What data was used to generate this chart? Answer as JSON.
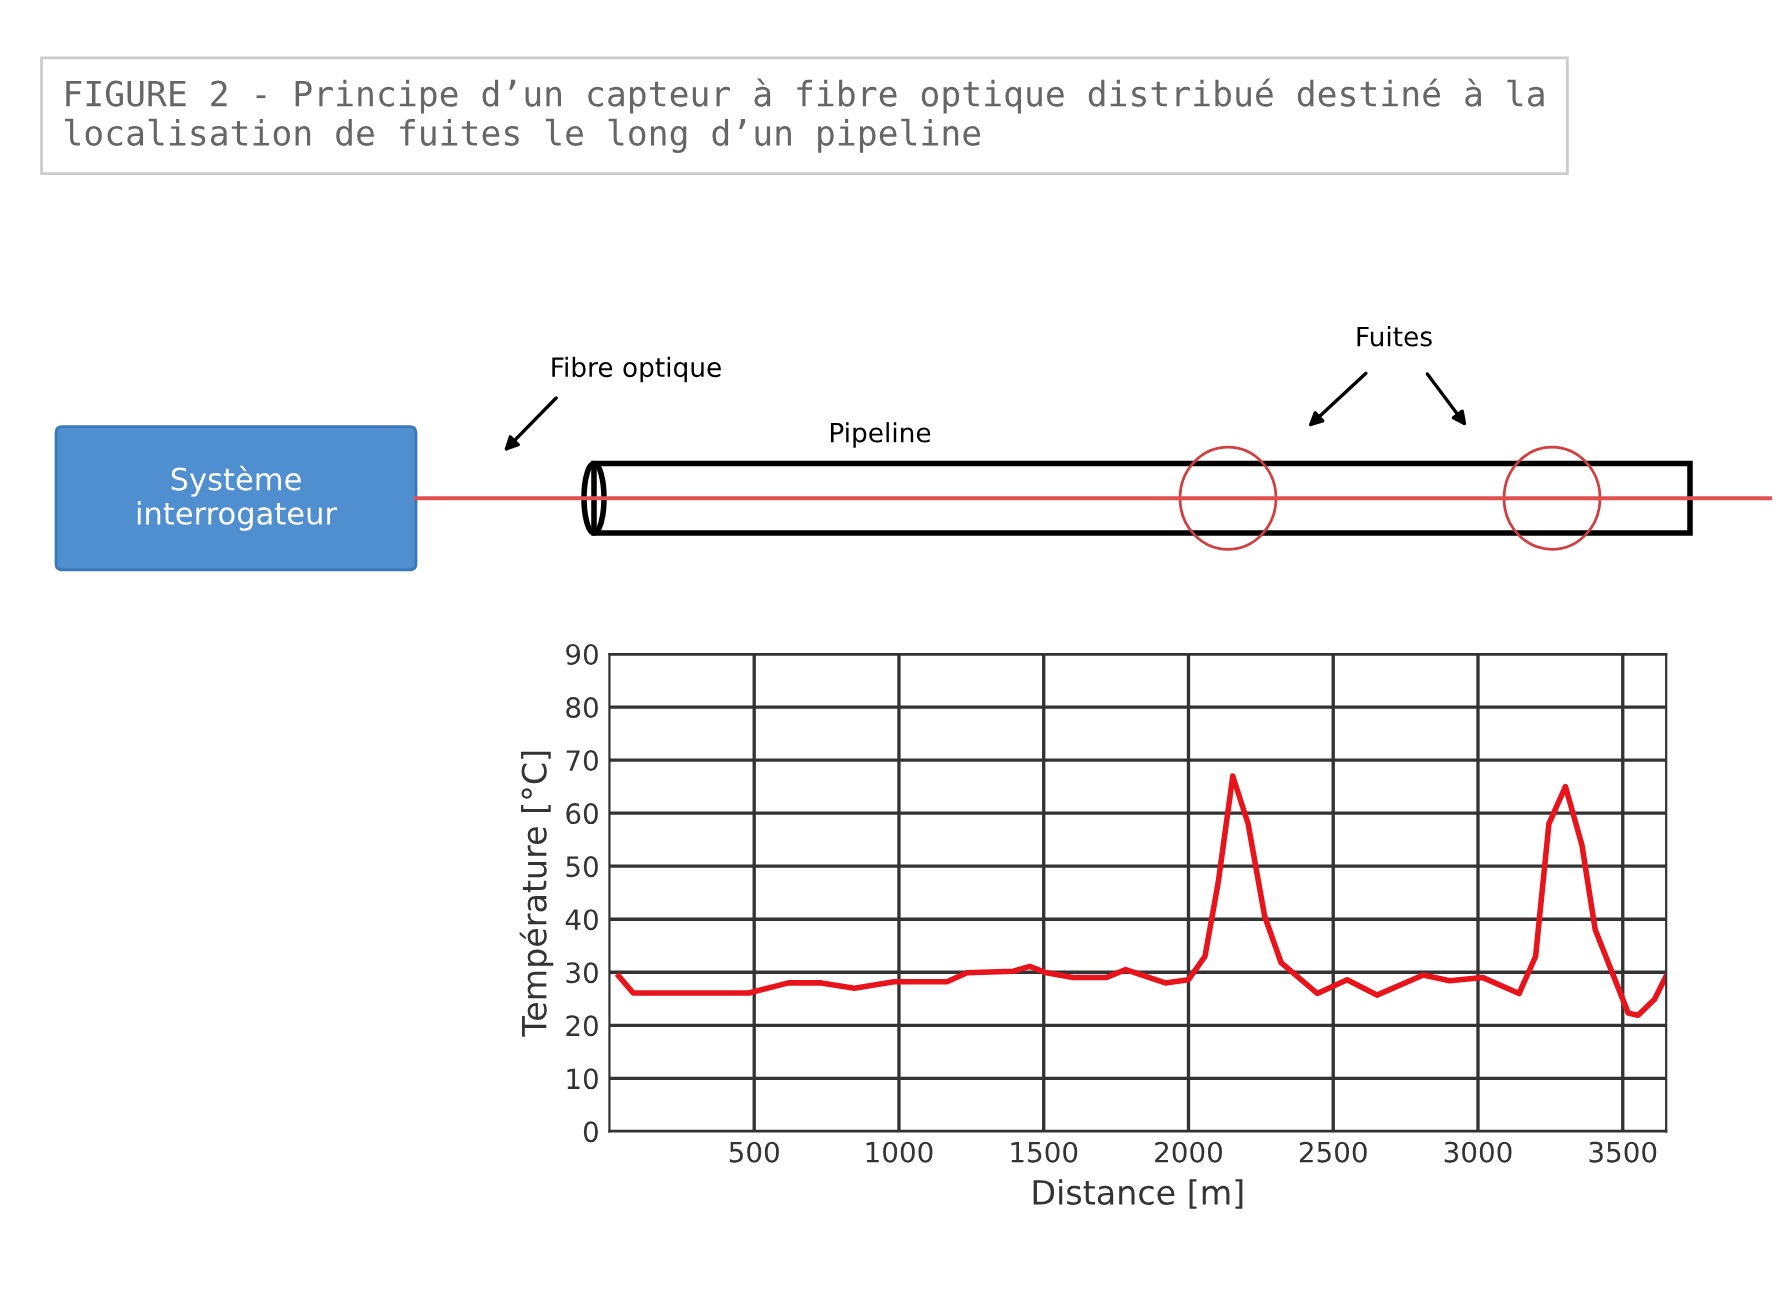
{
  "chart_data": {
    "type": "line",
    "title": "FIGURE 2 - Principe d’un capteur à fibre optique distribué destiné à la localisation de fuites le long d’un pipeline",
    "xlabel": "Distance [m]",
    "ylabel": "Température [°C]",
    "annotations": [
      "Système interrogateur",
      "Fibre optique",
      "Pipeline",
      "Fuites"
    ],
    "series": [
      {
        "color": "#e8141b",
        "x": [
          32,
          82,
          276,
          481,
          618,
          732,
          846,
          983,
          1166,
          1235,
          1395,
          1452,
          1509,
          1601,
          1715,
          1783,
          1920,
          2000,
          2057,
          2103,
          2153,
          2206,
          2263,
          2320,
          2445,
          2548,
          2651,
          2811,
          2902,
          3017,
          3142,
          3199,
          3245,
          3302,
          3359,
          3405,
          3519,
          3553,
          3610,
          3650
        ],
        "values": [
          29.3,
          26.1,
          26.1,
          26.1,
          28,
          28,
          27,
          28.2,
          28.2,
          29.9,
          30.2,
          31.1,
          29.9,
          29,
          29,
          30.5,
          28,
          28.6,
          33,
          47,
          67,
          58,
          40.6,
          31.8,
          26,
          28.6,
          25.7,
          29.5,
          28.4,
          29,
          26,
          33,
          58,
          65,
          54,
          38,
          22.3,
          21.9,
          24.9,
          29.3
        ]
      }
    ],
    "xlim": [
      0,
      3650
    ],
    "xticks": [
      500,
      1000,
      1500,
      2000,
      2500,
      3000,
      3500
    ],
    "ylim": [
      0,
      90
    ],
    "yticks": [
      0,
      10,
      20,
      30,
      40,
      50,
      60,
      70,
      80,
      90
    ],
    "grid": true,
    "marker": "none",
    "line_style": "solid",
    "legend": false
  }
}
